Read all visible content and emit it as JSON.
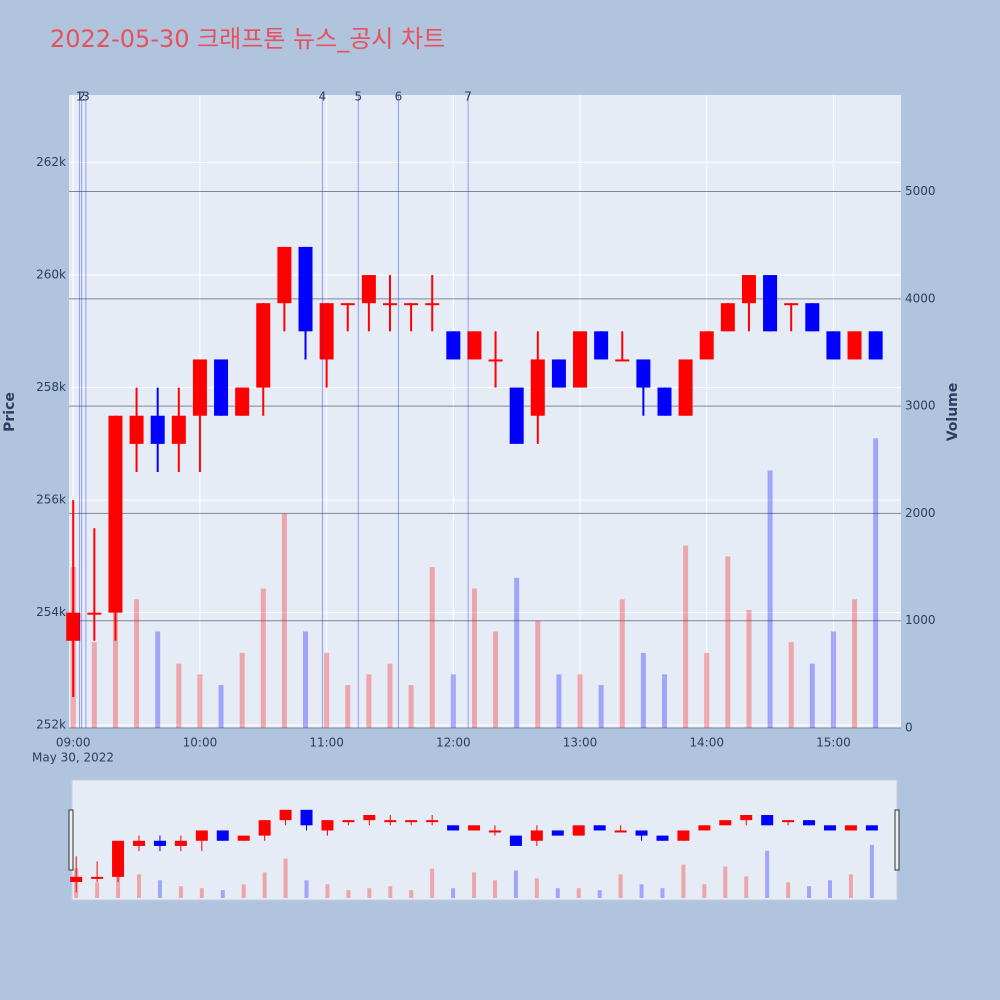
{
  "chart_data": {
    "type": "candlestick",
    "title": "2022-05-30 크래프톤 뉴스_공시 차트",
    "x_sublabel": "May 30, 2022",
    "y_label": "Price",
    "y2_label": "Volume",
    "up_color": "#ff0000",
    "down_color": "#0000ff",
    "x": [
      "09:00",
      "09:10",
      "09:20",
      "09:30",
      "09:40",
      "09:50",
      "10:00",
      "10:10",
      "10:20",
      "10:30",
      "10:40",
      "10:50",
      "11:00",
      "11:10",
      "11:20",
      "11:30",
      "11:40",
      "11:50",
      "12:00",
      "12:10",
      "12:20",
      "12:30",
      "12:40",
      "12:50",
      "13:00",
      "13:10",
      "13:20",
      "13:30",
      "13:40",
      "13:50",
      "14:00",
      "14:10",
      "14:20",
      "14:30",
      "14:40",
      "14:50",
      "15:00",
      "15:10",
      "15:20"
    ],
    "open": [
      253500,
      254000,
      254000,
      257000,
      257500,
      257000,
      257500,
      258500,
      257500,
      258000,
      259500,
      260500,
      258500,
      259500,
      259500,
      259500,
      259500,
      259500,
      259000,
      258500,
      258500,
      258000,
      257500,
      258500,
      258000,
      259000,
      258500,
      258500,
      258000,
      257500,
      258500,
      259000,
      259500,
      260000,
      259500,
      259500,
      259000,
      258500,
      259000
    ],
    "high": [
      256000,
      255500,
      257500,
      258000,
      258000,
      258000,
      258500,
      258500,
      258000,
      259500,
      260500,
      260500,
      259500,
      259500,
      260000,
      260000,
      259500,
      260000,
      259000,
      259000,
      259000,
      258000,
      259000,
      258500,
      259000,
      259000,
      259000,
      258500,
      258000,
      258500,
      259000,
      259500,
      260000,
      260000,
      259500,
      259500,
      259000,
      259000,
      259000
    ],
    "low": [
      252500,
      253500,
      253500,
      256500,
      256500,
      256500,
      256500,
      257500,
      257500,
      257500,
      259000,
      258500,
      258000,
      259000,
      259000,
      259000,
      259000,
      259000,
      258500,
      258500,
      258000,
      257000,
      257000,
      258000,
      258000,
      258500,
      258500,
      257500,
      257500,
      257500,
      258500,
      259000,
      259000,
      259000,
      259000,
      259000,
      258500,
      258500,
      258500
    ],
    "close": [
      254000,
      254000,
      257500,
      257500,
      257000,
      257500,
      258500,
      257500,
      258000,
      259500,
      260500,
      259000,
      259500,
      259500,
      260000,
      259500,
      259500,
      259500,
      258500,
      259000,
      258500,
      257000,
      258500,
      258000,
      259000,
      258500,
      258500,
      258000,
      257500,
      258500,
      259000,
      259500,
      260000,
      259000,
      259500,
      259000,
      258500,
      259000,
      258500
    ],
    "volume": [
      1500,
      800,
      2200,
      1200,
      900,
      600,
      500,
      400,
      700,
      1300,
      2000,
      900,
      700,
      400,
      500,
      600,
      400,
      1500,
      500,
      1300,
      900,
      1400,
      1000,
      500,
      500,
      400,
      1200,
      700,
      500,
      1700,
      700,
      1600,
      1100,
      2400,
      800,
      600,
      900,
      1200,
      2700
    ],
    "xlim": [
      "08:58",
      "15:32"
    ],
    "xticks": [
      "09:00",
      "10:00",
      "11:00",
      "12:00",
      "13:00",
      "14:00",
      "15:00"
    ],
    "ylim": [
      251950,
      263200
    ],
    "yticks": [
      {
        "value": 252000,
        "label": "252k"
      },
      {
        "value": 254000,
        "label": "254k"
      },
      {
        "value": 256000,
        "label": "256k"
      },
      {
        "value": 258000,
        "label": "258k"
      },
      {
        "value": 260000,
        "label": "260k"
      },
      {
        "value": 262000,
        "label": "262k"
      }
    ],
    "y2lim": [
      0,
      5900
    ],
    "y2ticks": [
      0,
      1000,
      2000,
      3000,
      4000,
      5000
    ],
    "news": {
      "labels": [
        "1",
        "2",
        "3",
        "4",
        "5",
        "6",
        "7"
      ],
      "x": [
        "09:03",
        "09:04",
        "09:06",
        "10:58",
        "11:15",
        "11:34",
        "12:07"
      ]
    },
    "rangeslider": true
  }
}
